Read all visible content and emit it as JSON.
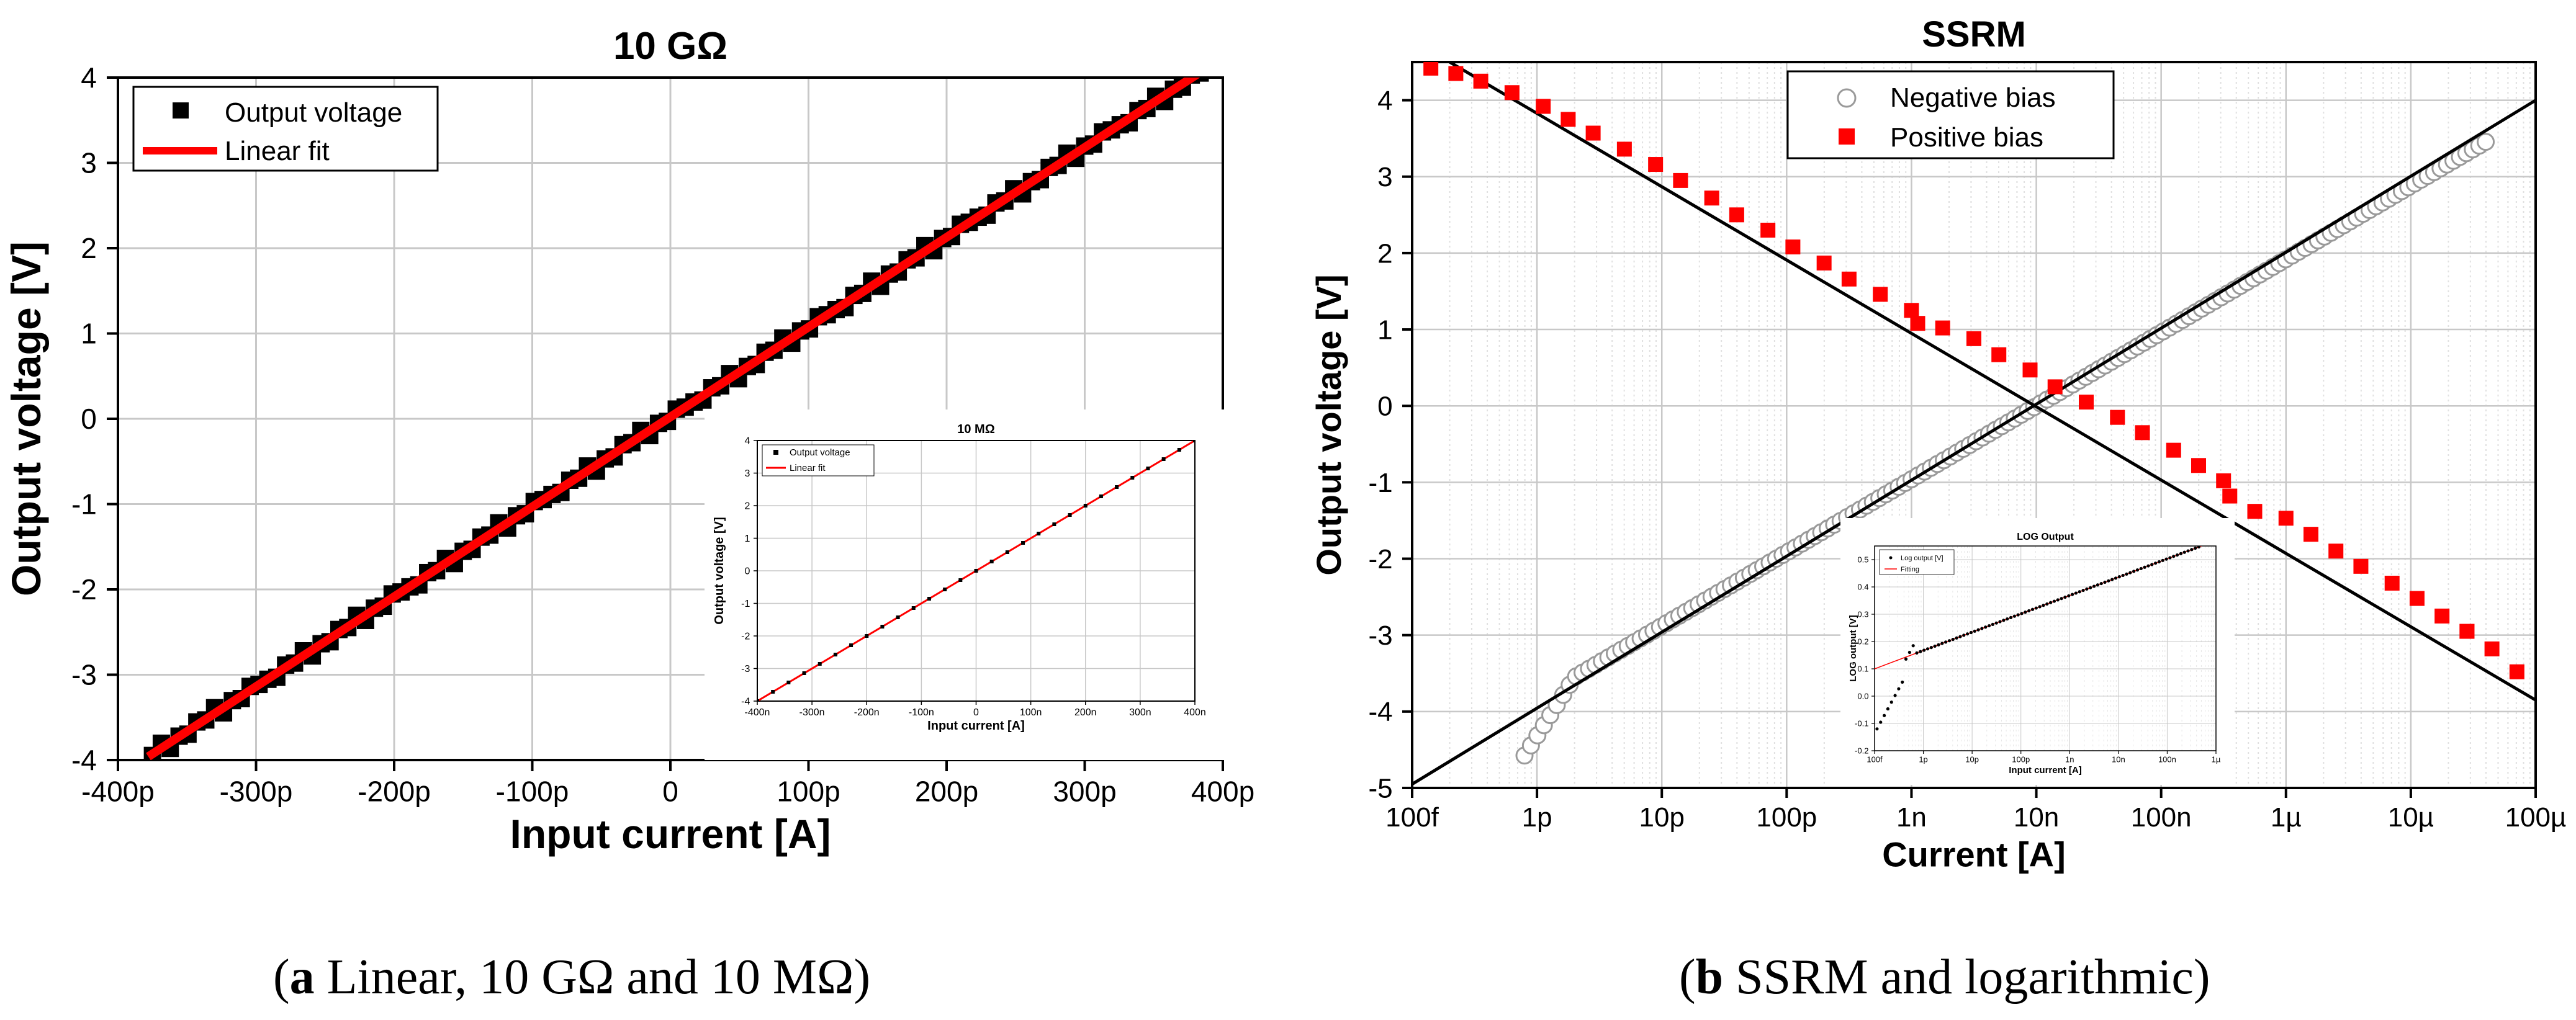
{
  "captions": {
    "a_letter": "a",
    "a_text": " Linear, 10 GΩ and 10 MΩ",
    "b_letter": "b",
    "b_text": " SSRM and logarithmic"
  },
  "colors": {
    "fit_red": "#ff0000",
    "marker_black": "#000000",
    "grid": "#c8c8c8"
  },
  "chart_data": [
    {
      "id": "a_main",
      "type": "line",
      "title": "10 GΩ",
      "xlabel": "Input current [A]",
      "ylabel": "Output voltage [V]",
      "xlim": [
        -400,
        400
      ],
      "ylim": [
        -4,
        4
      ],
      "x_unit": "pA",
      "x_tick_labels": [
        "-400p",
        "-300p",
        "-200p",
        "-100p",
        "0",
        "100p",
        "200p",
        "300p",
        "400p"
      ],
      "y_tick_labels": [
        "4",
        "3",
        "2",
        "1",
        "0",
        "-1",
        "-2",
        "-3",
        "-4"
      ],
      "legend": [
        "Output voltage",
        "Linear fit"
      ],
      "legend_position": "top-left",
      "series": [
        {
          "name": "Output voltage",
          "marker": "square",
          "x_range": [
            -375,
            390
          ],
          "points": 120,
          "slope": 0.01053,
          "intercept": 0.02
        },
        {
          "name": "Linear fit",
          "line": true,
          "x": [
            -378,
            392
          ],
          "y": [
            -3.96,
            4.15
          ]
        }
      ]
    },
    {
      "id": "a_inset",
      "type": "line",
      "title": "10 MΩ",
      "xlabel": "Input current [A]",
      "ylabel": "Output voltage [V]",
      "xlim": [
        -400,
        400
      ],
      "ylim": [
        -4,
        4
      ],
      "x_unit": "nA",
      "x_tick_labels": [
        "-400n",
        "-300n",
        "-200n",
        "-100n",
        "0",
        "100n",
        "200n",
        "300n",
        "400n"
      ],
      "y_tick_labels": [
        "4",
        "3",
        "2",
        "1",
        "0",
        "-1",
        "-2",
        "-3",
        "-4"
      ],
      "legend": [
        "Output voltage",
        "Linear fit"
      ],
      "series": [
        {
          "name": "Output voltage",
          "marker": "square",
          "x_range": [
            -400,
            400
          ],
          "points": 29,
          "slope": 0.01,
          "intercept": 0
        },
        {
          "name": "Linear fit",
          "line": true,
          "x": [
            -400,
            400
          ],
          "y": [
            -4,
            4
          ]
        }
      ]
    },
    {
      "id": "b_main",
      "type": "scatter",
      "title": "SSRM",
      "xlabel": "Current [A]",
      "ylabel": "Output voltage [V]",
      "xscale": "log",
      "xlim_log10": [
        -13,
        -4
      ],
      "ylim": [
        -5,
        4.5
      ],
      "x_tick_labels": [
        "100f",
        "1p",
        "10p",
        "100p",
        "1n",
        "10n",
        "100n",
        "1µ",
        "10µ",
        "100µ"
      ],
      "y_tick_labels": [
        "4",
        "3",
        "2",
        "1",
        "0",
        "-1",
        "-2",
        "-3",
        "-4",
        "-5"
      ],
      "legend": [
        "Negative bias",
        "Positive bias"
      ],
      "legend_position": "top-center",
      "series": [
        {
          "name": "Negative bias",
          "marker": "open-circle",
          "log10_x_range": [
            -12.1,
            -4.4
          ],
          "slope": 0.96,
          "intercept_at": -8
        },
        {
          "name": "Positive bias",
          "marker": "filled-square",
          "x_log10": [
            -12.85,
            -12.65,
            -12.45,
            -12.2,
            -11.95,
            -11.75,
            -11.55,
            -11.3,
            -11.05,
            -10.85,
            -10.6,
            -10.4,
            -10.15,
            -9.95,
            -9.7,
            -9.5,
            -9.25,
            -9.0,
            -8.95,
            -8.75,
            -8.5,
            -8.3,
            -8.05,
            -7.85,
            -7.6,
            -7.35,
            -7.15,
            -6.9,
            -6.7,
            -6.5,
            -6.45,
            -6.25,
            -6.0,
            -5.8,
            -5.6,
            -5.4,
            -5.15,
            -4.95,
            -4.75,
            -4.55
          ],
          "y": [
            4.42,
            4.35,
            4.25,
            4.1,
            3.92,
            3.75,
            3.57,
            3.36,
            3.16,
            2.95,
            2.72,
            2.5,
            2.3,
            2.08,
            1.87,
            1.66,
            1.46,
            1.25,
            1.08,
            1.02,
            0.88,
            0.67,
            0.47,
            0.25,
            0.05,
            -0.15,
            -0.35,
            -0.58,
            -0.78,
            -0.98,
            -1.18,
            -1.38,
            -1.47,
            -1.68,
            -1.9,
            -2.1,
            -2.32,
            -2.52,
            -2.75,
            -2.95
          ]
        },
        {
          "name": "Negative fit",
          "line": true,
          "x_log10": [
            -13,
            -4
          ],
          "y": [
            -4.95,
            4.0
          ]
        },
        {
          "name": "Positive fit",
          "line": true,
          "x_log10": [
            -12.7,
            -4
          ],
          "y": [
            4.5,
            -3.85
          ]
        }
      ],
      "extra_points": [
        {
          "series": "Positive bias",
          "x_log10": -4.35,
          "y": -3.18
        },
        {
          "series": "Positive bias",
          "x_log10": -4.15,
          "y": -3.48
        },
        {
          "series": "Positive bias",
          "x_log10": -4.55,
          "y": -2.95
        }
      ]
    },
    {
      "id": "b_inset",
      "type": "scatter",
      "title": "LOG Output",
      "xlabel": "Input current [A]",
      "ylabel": "LOG output [V]",
      "xscale": "log",
      "xlim_log10": [
        -13,
        -6
      ],
      "ylim": [
        -0.2,
        0.55
      ],
      "x_tick_labels": [
        "100f",
        "1p",
        "10p",
        "100p",
        "1n",
        "10n",
        "100n",
        "1µ"
      ],
      "y_tick_labels": [
        "0.5",
        "0.4",
        "0.3",
        "0.2",
        "0.1",
        "0.0",
        "-0.1",
        "-0.2"
      ],
      "legend": [
        "Log output [V]",
        "Fitting"
      ],
      "series": [
        {
          "name": "Log output [V]",
          "marker": "dot",
          "knee_log10": -12.2
        },
        {
          "name": "Fitting",
          "line": true,
          "x_log10": [
            -13,
            -6.3
          ],
          "y": [
            0.1,
            0.55
          ]
        }
      ]
    }
  ]
}
